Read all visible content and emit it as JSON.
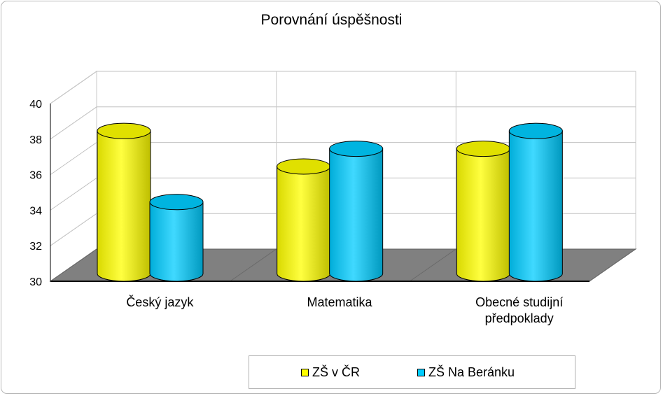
{
  "chart_data": {
    "type": "bar",
    "title": "Porovnání úspěšnosti",
    "categories": [
      "Český jazyk",
      "Matematika",
      "Obecné studijní předpoklady"
    ],
    "category_lines": [
      [
        "Český jazyk"
      ],
      [
        "Matematika"
      ],
      [
        "Obecné studijní",
        "předpoklady"
      ]
    ],
    "series": [
      {
        "name": "ZŠ v ČR",
        "values": [
          38.3,
          36.3,
          37.3
        ],
        "color": "#ffff00"
      },
      {
        "name": "ZŠ Na Beránku",
        "values": [
          34.3,
          37.3,
          38.3
        ],
        "color": "#00ccff"
      }
    ],
    "ylim": [
      30,
      40
    ],
    "yticks": [
      "30",
      "32",
      "34",
      "36",
      "38",
      "40"
    ],
    "bar_shape": "3d-cylinder",
    "floor_color": "#808080",
    "grid": true,
    "legend": "bottom"
  }
}
